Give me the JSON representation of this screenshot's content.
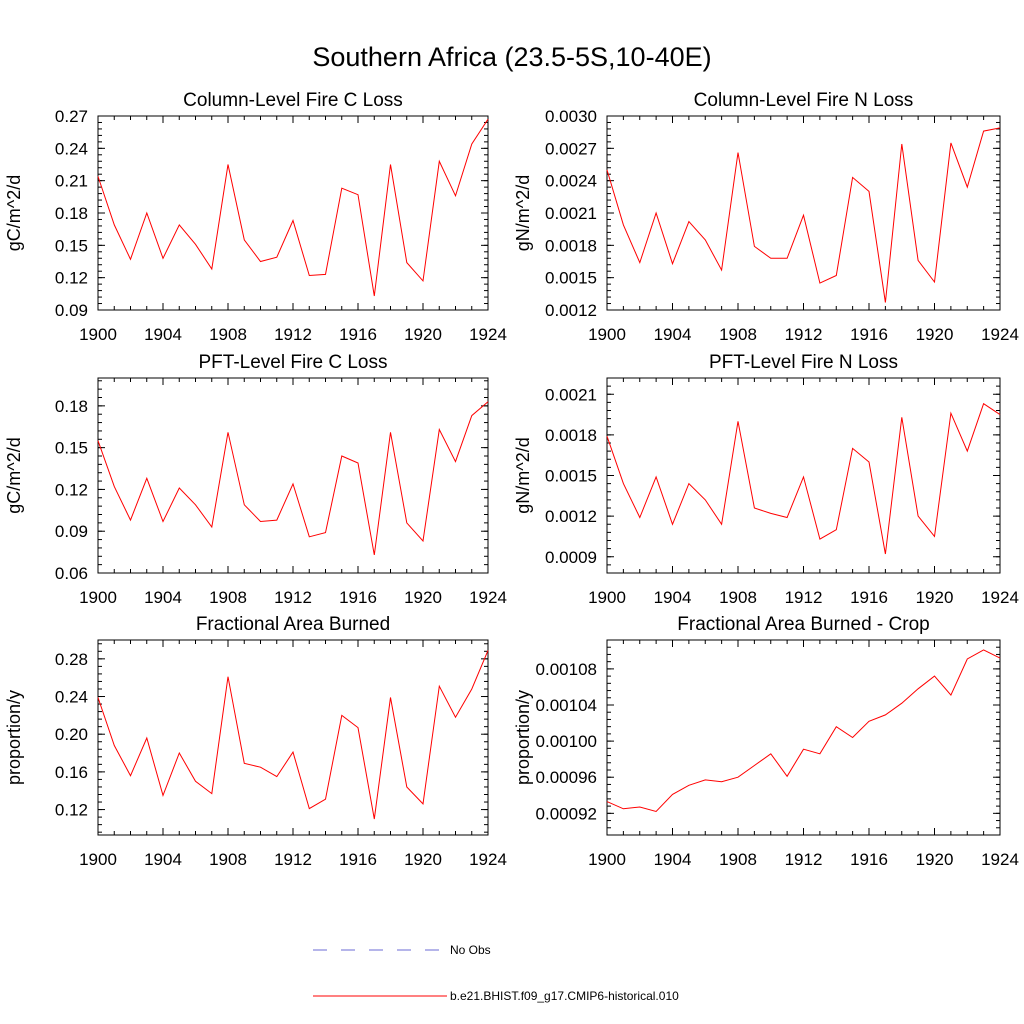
{
  "figure": {
    "title": "Southern Africa (23.5-5S,10-40E)"
  },
  "legend": {
    "items": [
      {
        "label": "No Obs",
        "color": "#6b6bd6",
        "style": "dashed"
      },
      {
        "label": "b.e21.BHIST.f09_g17.CMIP6-historical.010",
        "color": "#ff0000",
        "style": "solid"
      }
    ]
  },
  "colors": {
    "series": "#ff0000",
    "axis": "#000000"
  },
  "chart_data": [
    {
      "type": "line",
      "title": "Column-Level Fire C Loss",
      "ylabel": "gC/m^2/d",
      "xlim": [
        1900,
        1924
      ],
      "ylim": [
        0.09,
        0.27
      ],
      "xticks": [
        "1900",
        "1904",
        "1908",
        "1912",
        "1916",
        "1920",
        "1924"
      ],
      "yticks": [
        "0.09",
        "0.12",
        "0.15",
        "0.18",
        "0.21",
        "0.24",
        "0.27"
      ],
      "x": [
        1900,
        1901,
        1902,
        1903,
        1904,
        1905,
        1906,
        1907,
        1908,
        1909,
        1910,
        1911,
        1912,
        1913,
        1914,
        1915,
        1916,
        1917,
        1918,
        1919,
        1920,
        1921,
        1922,
        1923,
        1924
      ],
      "series": [
        {
          "name": "b.e21.BHIST.f09_g17.CMIP6-historical.010",
          "values": [
            0.214,
            0.169,
            0.137,
            0.18,
            0.138,
            0.169,
            0.151,
            0.128,
            0.225,
            0.155,
            0.135,
            0.139,
            0.173,
            0.122,
            0.123,
            0.203,
            0.197,
            0.103,
            0.225,
            0.134,
            0.117,
            0.228,
            0.196,
            0.244,
            0.267
          ]
        }
      ]
    },
    {
      "type": "line",
      "title": "Column-Level Fire N Loss",
      "ylabel": "gN/m^2/d",
      "xlim": [
        1900,
        1924
      ],
      "ylim": [
        0.0012,
        0.003
      ],
      "xticks": [
        "1900",
        "1904",
        "1908",
        "1912",
        "1916",
        "1920",
        "1924"
      ],
      "yticks": [
        "0.0012",
        "0.0015",
        "0.0018",
        "0.0021",
        "0.0024",
        "0.0027",
        "0.0030"
      ],
      "x": [
        1900,
        1901,
        1902,
        1903,
        1904,
        1905,
        1906,
        1907,
        1908,
        1909,
        1910,
        1911,
        1912,
        1913,
        1914,
        1915,
        1916,
        1917,
        1918,
        1919,
        1920,
        1921,
        1922,
        1923,
        1924
      ],
      "series": [
        {
          "name": "b.e21.BHIST.f09_g17.CMIP6-historical.010",
          "values": [
            0.0025,
            0.00199,
            0.00164,
            0.0021,
            0.00163,
            0.00202,
            0.00185,
            0.00157,
            0.00266,
            0.00179,
            0.00168,
            0.00168,
            0.00208,
            0.00145,
            0.00152,
            0.00243,
            0.0023,
            0.00127,
            0.00274,
            0.00166,
            0.00146,
            0.00275,
            0.00234,
            0.00286,
            0.00289
          ]
        }
      ]
    },
    {
      "type": "line",
      "title": "PFT-Level Fire C Loss",
      "ylabel": "gC/m^2/d",
      "xlim": [
        1900,
        1924
      ],
      "ylim": [
        0.06,
        0.2
      ],
      "xticks": [
        "1900",
        "1904",
        "1908",
        "1912",
        "1916",
        "1920",
        "1924"
      ],
      "yticks": [
        "0.06",
        "0.09",
        "0.12",
        "0.15",
        "0.18"
      ],
      "x": [
        1900,
        1901,
        1902,
        1903,
        1904,
        1905,
        1906,
        1907,
        1908,
        1909,
        1910,
        1911,
        1912,
        1913,
        1914,
        1915,
        1916,
        1917,
        1918,
        1919,
        1920,
        1921,
        1922,
        1923,
        1924
      ],
      "series": [
        {
          "name": "b.e21.BHIST.f09_g17.CMIP6-historical.010",
          "values": [
            0.155,
            0.122,
            0.098,
            0.128,
            0.097,
            0.121,
            0.109,
            0.093,
            0.161,
            0.109,
            0.097,
            0.098,
            0.124,
            0.086,
            0.089,
            0.144,
            0.139,
            0.073,
            0.161,
            0.096,
            0.083,
            0.163,
            0.14,
            0.173,
            0.183
          ]
        }
      ]
    },
    {
      "type": "line",
      "title": "PFT-Level Fire N Loss",
      "ylabel": "gN/m^2/d",
      "xlim": [
        1900,
        1924
      ],
      "ylim": [
        0.00078,
        0.00222
      ],
      "xticks": [
        "1900",
        "1904",
        "1908",
        "1912",
        "1916",
        "1920",
        "1924"
      ],
      "yticks": [
        "0.0009",
        "0.0012",
        "0.0015",
        "0.0018",
        "0.0021"
      ],
      "x": [
        1900,
        1901,
        1902,
        1903,
        1904,
        1905,
        1906,
        1907,
        1908,
        1909,
        1910,
        1911,
        1912,
        1913,
        1914,
        1915,
        1916,
        1917,
        1918,
        1919,
        1920,
        1921,
        1922,
        1923,
        1924
      ],
      "series": [
        {
          "name": "b.e21.BHIST.f09_g17.CMIP6-historical.010",
          "values": [
            0.00179,
            0.00144,
            0.00119,
            0.00149,
            0.00114,
            0.00144,
            0.00132,
            0.00114,
            0.0019,
            0.00126,
            0.00122,
            0.00119,
            0.00149,
            0.00103,
            0.0011,
            0.0017,
            0.0016,
            0.00092,
            0.00193,
            0.0012,
            0.00105,
            0.00196,
            0.00168,
            0.00203,
            0.00195
          ]
        }
      ]
    },
    {
      "type": "line",
      "title": "Fractional Area Burned",
      "ylabel": "proportion/y",
      "xlim": [
        1900,
        1924
      ],
      "ylim": [
        0.093,
        0.3
      ],
      "xticks": [
        "1900",
        "1904",
        "1908",
        "1912",
        "1916",
        "1920",
        "1924"
      ],
      "yticks": [
        "0.12",
        "0.16",
        "0.20",
        "0.24",
        "0.28"
      ],
      "x": [
        1900,
        1901,
        1902,
        1903,
        1904,
        1905,
        1906,
        1907,
        1908,
        1909,
        1910,
        1911,
        1912,
        1913,
        1914,
        1915,
        1916,
        1917,
        1918,
        1919,
        1920,
        1921,
        1922,
        1923,
        1924
      ],
      "series": [
        {
          "name": "b.e21.BHIST.f09_g17.CMIP6-historical.010",
          "values": [
            0.239,
            0.188,
            0.156,
            0.196,
            0.135,
            0.18,
            0.15,
            0.137,
            0.261,
            0.169,
            0.165,
            0.155,
            0.181,
            0.121,
            0.131,
            0.22,
            0.207,
            0.11,
            0.239,
            0.144,
            0.126,
            0.251,
            0.218,
            0.248,
            0.289
          ]
        }
      ]
    },
    {
      "type": "line",
      "title": "Fractional Area Burned - Crop",
      "ylabel": "proportion/y",
      "xlim": [
        1900,
        1924
      ],
      "ylim": [
        0.000896,
        0.001112
      ],
      "xticks": [
        "1900",
        "1904",
        "1908",
        "1912",
        "1916",
        "1920",
        "1924"
      ],
      "yticks": [
        "0.00092",
        "0.00096",
        "0.00100",
        "0.00104",
        "0.00108"
      ],
      "x": [
        1900,
        1901,
        1902,
        1903,
        1904,
        1905,
        1906,
        1907,
        1908,
        1909,
        1910,
        1911,
        1912,
        1913,
        1914,
        1915,
        1916,
        1917,
        1918,
        1919,
        1920,
        1921,
        1922,
        1923,
        1924
      ],
      "series": [
        {
          "name": "b.e21.BHIST.f09_g17.CMIP6-historical.010",
          "values": [
            0.000933,
            0.000925,
            0.000927,
            0.000922,
            0.000941,
            0.000951,
            0.000957,
            0.000955,
            0.00096,
            0.000973,
            0.000986,
            0.000961,
            0.000991,
            0.000986,
            0.001016,
            0.001004,
            0.001022,
            0.001029,
            0.001042,
            0.001058,
            0.001072,
            0.001051,
            0.001091,
            0.001101,
            0.001092
          ]
        }
      ]
    }
  ]
}
